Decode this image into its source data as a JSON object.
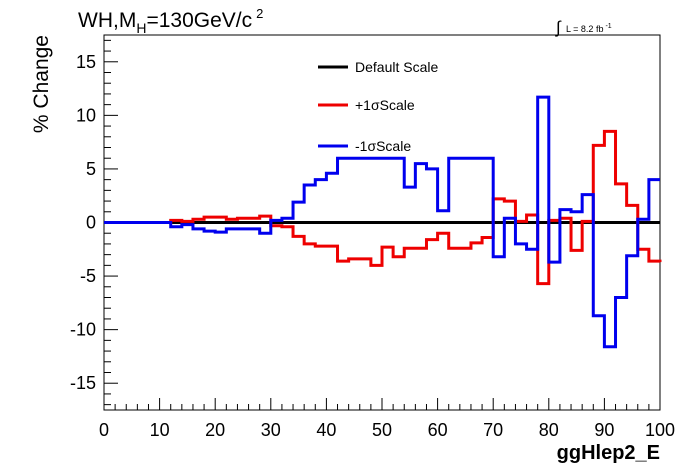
{
  "chart_data": {
    "type": "line",
    "title_main": "WH,M",
    "title_sub": "H",
    "title_rest": "=130GeV/c",
    "title_sup": "2",
    "lumi_label": "L = 8.2 fb",
    "lumi_sup": "-1",
    "xlabel": "ggHlep2_E",
    "ylabel": "% Change",
    "xlim": [
      0,
      100
    ],
    "ylim": [
      -17.5,
      17.5
    ],
    "x_ticks": [
      "0",
      "10",
      "20",
      "30",
      "40",
      "50",
      "60",
      "70",
      "80",
      "90",
      "100"
    ],
    "y_ticks": [
      "-15",
      "-10",
      "-5",
      "0",
      "5",
      "10",
      "15"
    ],
    "y_tick_values": [
      -15,
      -10,
      -5,
      0,
      5,
      10,
      15
    ],
    "legend_position": "top-center",
    "series": [
      {
        "name": "Default Scale",
        "color": "#000000",
        "edges": [
          0,
          100
        ],
        "values": [
          0
        ]
      },
      {
        "name": "+1σScale",
        "color": "#ee0000",
        "edges": [
          0,
          12,
          14,
          16,
          18,
          20,
          22,
          24,
          26,
          28,
          30,
          32,
          34,
          36,
          38,
          40,
          42,
          44,
          46,
          48,
          50,
          52,
          54,
          56,
          58,
          60,
          62,
          64,
          66,
          68,
          70,
          72,
          74,
          76,
          78,
          80,
          82,
          84,
          86,
          88,
          90,
          92,
          94,
          96,
          98,
          100
        ],
        "values": [
          0,
          0.2,
          0.1,
          0.3,
          0.5,
          0.5,
          0.3,
          0.4,
          0.4,
          0.6,
          -0.3,
          -0.4,
          -1.3,
          -2.0,
          -2.2,
          -2.2,
          -3.6,
          -3.4,
          -3.4,
          -4.0,
          -2.3,
          -3.2,
          -2.4,
          -2.4,
          -1.6,
          -1.0,
          -2.4,
          -2.4,
          -1.9,
          -1.4,
          2.2,
          2.0,
          0.1,
          0.7,
          -5.7,
          0.2,
          0.4,
          -2.6,
          0.1,
          7.2,
          8.5,
          3.6,
          1.6,
          -2.5,
          -3.6,
          -3.7
        ]
      },
      {
        "name": "-1σScale",
        "color": "#0000ee",
        "edges": [
          0,
          12,
          14,
          16,
          18,
          20,
          22,
          24,
          26,
          28,
          30,
          32,
          34,
          36,
          38,
          40,
          42,
          44,
          46,
          48,
          50,
          52,
          54,
          56,
          58,
          60,
          62,
          64,
          66,
          68,
          70,
          72,
          74,
          76,
          78,
          80,
          82,
          84,
          86,
          88,
          90,
          92,
          94,
          96,
          98,
          100
        ],
        "values": [
          0,
          -0.4,
          -0.2,
          -0.6,
          -0.8,
          -0.9,
          -0.6,
          -0.6,
          -0.6,
          -1.0,
          0.2,
          0.4,
          1.9,
          3.5,
          4.0,
          4.6,
          6.0,
          6.0,
          6.0,
          6.0,
          6.0,
          6.0,
          3.3,
          5.5,
          5.0,
          1.1,
          6.0,
          6.0,
          6.0,
          6.0,
          -3.2,
          0.4,
          -2.0,
          -2.5,
          11.7,
          -3.7,
          1.2,
          1.0,
          2.6,
          -8.7,
          -11.6,
          -7.0,
          -3.1,
          0.3,
          4.0,
          4.0
        ]
      }
    ]
  }
}
